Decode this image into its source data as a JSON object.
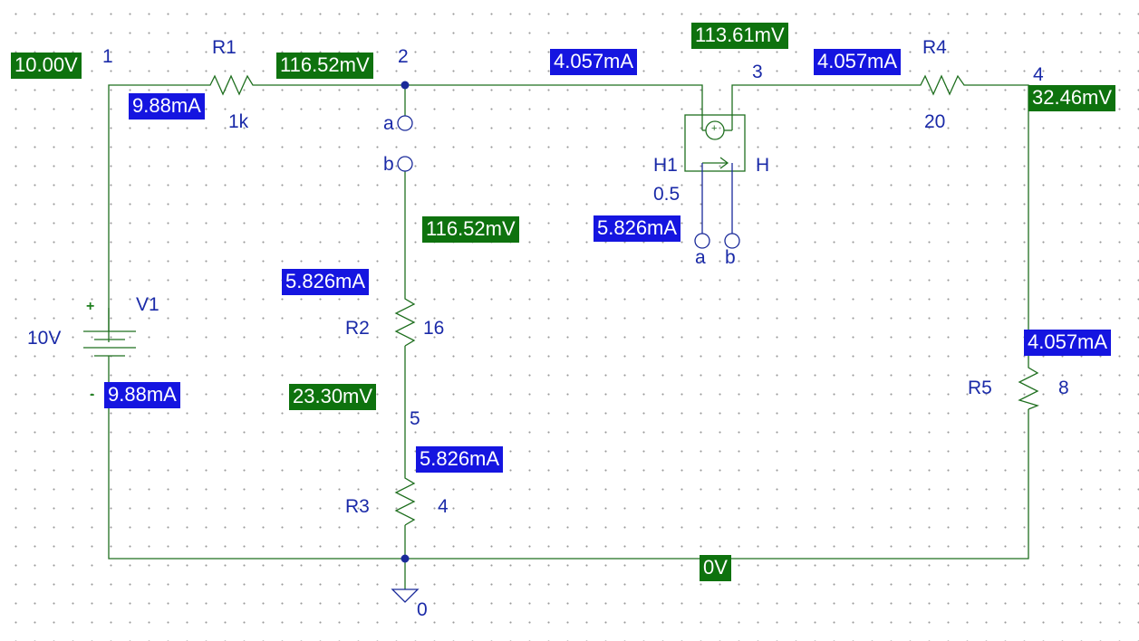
{
  "nodes": {
    "n1": "1",
    "n2": "2",
    "n3": "3",
    "n4": "4",
    "n5": "5",
    "n0": "0"
  },
  "components": {
    "r1": {
      "name": "R1",
      "value": "1k"
    },
    "r2": {
      "name": "R2",
      "value": "16"
    },
    "r3": {
      "name": "R3",
      "value": "4"
    },
    "r4": {
      "name": "R4",
      "value": "20"
    },
    "r5": {
      "name": "R5",
      "value": "8"
    },
    "v1": {
      "name": "V1",
      "value": "10V",
      "plus": "+",
      "minus": "-"
    },
    "h1": {
      "name": "H1",
      "type": "H",
      "gain": "0.5"
    }
  },
  "terminals": {
    "switch_a": "a",
    "switch_b": "b",
    "h1_a": "a",
    "h1_b": "b",
    "h1_src_plus": "+"
  },
  "voltages": {
    "node1": "10.00V",
    "node2": "116.52mV",
    "node2_branch": "116.52mV",
    "node3": "113.61mV",
    "node4": "32.46mV",
    "node5": "23.30mV",
    "ground": "0V"
  },
  "currents": {
    "r1": "9.88mA",
    "v1": "9.88mA",
    "wire_2_3": "4.057mA",
    "r4": "4.057mA",
    "r5": "4.057mA",
    "h1_sense": "5.826mA",
    "r2": "5.826mA",
    "r3": "5.826mA"
  },
  "colors": {
    "wire": "#1f6f1f",
    "voltage_badge": "#0e720e",
    "current_badge": "#1515e0",
    "label_text": "#1a2aa8"
  }
}
